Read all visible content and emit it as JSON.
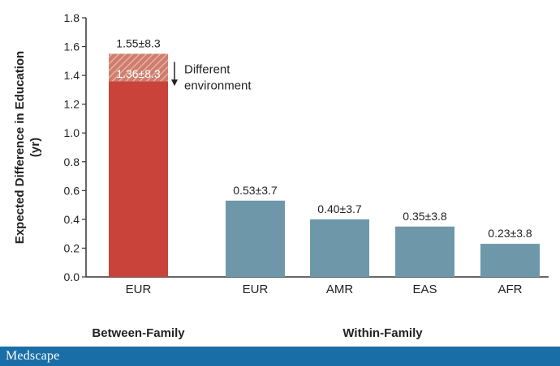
{
  "chart_data": {
    "type": "bar",
    "ylabel": "Expected Difference in Education (yr)",
    "ylim": [
      0,
      1.8
    ],
    "yticks": [
      "0.0",
      "0.2",
      "0.4",
      "0.6",
      "0.8",
      "1.0",
      "1.2",
      "1.4",
      "1.6",
      "1.8"
    ],
    "groups": [
      {
        "label": "Between-Family",
        "bars": [
          0
        ]
      },
      {
        "label": "Within-Family",
        "bars": [
          1,
          2,
          3,
          4
        ]
      }
    ],
    "bars": [
      {
        "category": "EUR",
        "value": 1.55,
        "label": "1.55±8.3",
        "color": "#c9433b",
        "inner_value": 1.36,
        "inner_label": "1.36±8.3"
      },
      {
        "category": "EUR",
        "value": 0.53,
        "label": "0.53±3.7",
        "color": "#6e97aa"
      },
      {
        "category": "AMR",
        "value": 0.4,
        "label": "0.40±3.7",
        "color": "#6e97aa"
      },
      {
        "category": "EAS",
        "value": 0.35,
        "label": "0.35±3.8",
        "color": "#6e97aa"
      },
      {
        "category": "AFR",
        "value": 0.23,
        "label": "0.23±3.8",
        "color": "#6e97aa"
      }
    ],
    "annotation": [
      "Different",
      "environment"
    ],
    "grid": false,
    "legend": "none"
  },
  "footer": {
    "logo": "Medscape",
    "background": "#1a6ea8"
  }
}
